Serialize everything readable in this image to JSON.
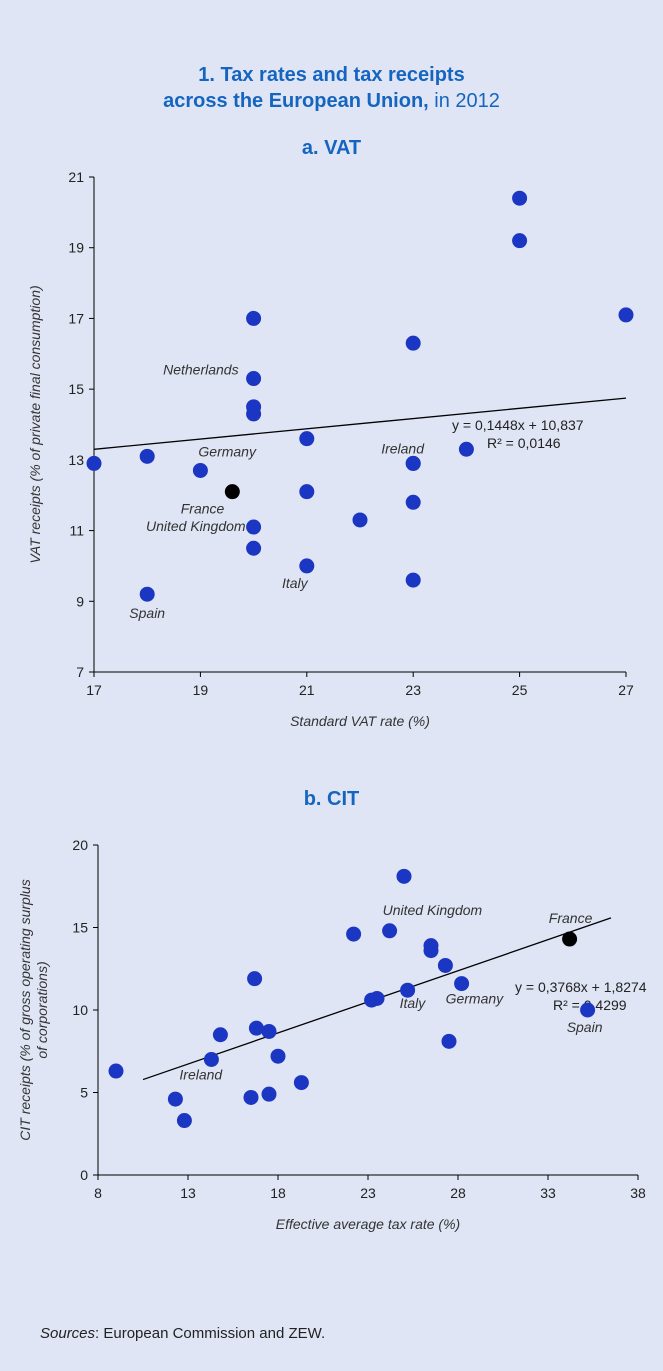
{
  "title": {
    "line1": "1. Tax rates and tax receipts",
    "line2_bold": "across the European Union,",
    "line2_rest": " in 2012"
  },
  "sources": {
    "label": "Sources",
    "text": ": European Commission and ZEW."
  },
  "colors": {
    "point": "#1b36c2",
    "highlight": "#000000",
    "title": "#1565c0",
    "background": "#dfe5f4"
  },
  "chart_data": [
    {
      "type": "scatter",
      "title": "a. VAT",
      "xlabel": "Standard VAT rate (%)",
      "ylabel": "VAT receipts (% of private final consumption)",
      "xlim": [
        17,
        27
      ],
      "ylim": [
        7,
        21
      ],
      "xticks": [
        17,
        19,
        21,
        23,
        25,
        27
      ],
      "yticks": [
        7,
        9,
        11,
        13,
        15,
        17,
        19,
        21
      ],
      "trendline": {
        "slope": 0.1448,
        "intercept": 10.837,
        "equation": "y = 0,1448x + 10,837",
        "r2": "R² = 0,0146"
      },
      "points": [
        {
          "x": 17,
          "y": 12.9
        },
        {
          "x": 18,
          "y": 13.1
        },
        {
          "x": 18,
          "y": 9.2,
          "label": "Spain"
        },
        {
          "x": 19,
          "y": 12.7,
          "label": "Germany"
        },
        {
          "x": 19.6,
          "y": 12.1,
          "label": "France",
          "highlight": true
        },
        {
          "x": 20,
          "y": 17.0
        },
        {
          "x": 20,
          "y": 15.3,
          "label": "Netherlands"
        },
        {
          "x": 20,
          "y": 14.5
        },
        {
          "x": 20,
          "y": 14.3
        },
        {
          "x": 20,
          "y": 11.1,
          "label": "United Kingdom"
        },
        {
          "x": 20,
          "y": 10.5
        },
        {
          "x": 21,
          "y": 13.6
        },
        {
          "x": 21,
          "y": 12.1
        },
        {
          "x": 21,
          "y": 10.0,
          "label": "Italy"
        },
        {
          "x": 22,
          "y": 11.3
        },
        {
          "x": 23,
          "y": 16.3
        },
        {
          "x": 23,
          "y": 12.9,
          "label": "Ireland"
        },
        {
          "x": 23,
          "y": 12.9
        },
        {
          "x": 23,
          "y": 11.8
        },
        {
          "x": 23,
          "y": 9.6
        },
        {
          "x": 24,
          "y": 13.3
        },
        {
          "x": 25,
          "y": 20.4
        },
        {
          "x": 25,
          "y": 19.2
        },
        {
          "x": 27,
          "y": 17.1
        }
      ]
    },
    {
      "type": "scatter",
      "title": "b. CIT",
      "xlabel": "Effective average tax rate (%)",
      "ylabel_line1": "CIT receipts (% of gross operating surplus",
      "ylabel_line2": "of corporations)",
      "xlim": [
        8,
        38
      ],
      "ylim": [
        0,
        20
      ],
      "xticks": [
        8,
        13,
        18,
        23,
        28,
        33,
        38
      ],
      "yticks": [
        0,
        5,
        10,
        15,
        20
      ],
      "trendline": {
        "slope": 0.3768,
        "intercept": 1.8274,
        "x_range": [
          10.5,
          36.5
        ],
        "equation": "y = 0,3768x + 1,8274",
        "r2": "R² = 0,4299"
      },
      "points": [
        {
          "x": 9.0,
          "y": 6.3
        },
        {
          "x": 12.3,
          "y": 4.6
        },
        {
          "x": 12.8,
          "y": 3.3
        },
        {
          "x": 14.3,
          "y": 7.0,
          "label": "Ireland"
        },
        {
          "x": 14.8,
          "y": 8.5
        },
        {
          "x": 16.5,
          "y": 4.7
        },
        {
          "x": 16.7,
          "y": 11.9
        },
        {
          "x": 16.8,
          "y": 8.9
        },
        {
          "x": 17.5,
          "y": 4.9
        },
        {
          "x": 17.5,
          "y": 8.7
        },
        {
          "x": 18.0,
          "y": 7.2
        },
        {
          "x": 19.3,
          "y": 5.6
        },
        {
          "x": 22.2,
          "y": 14.6
        },
        {
          "x": 23.2,
          "y": 10.6
        },
        {
          "x": 23.5,
          "y": 10.7
        },
        {
          "x": 24.2,
          "y": 14.8,
          "label": "United Kingdom"
        },
        {
          "x": 25.0,
          "y": 18.1
        },
        {
          "x": 25.2,
          "y": 11.2,
          "label": "Italy"
        },
        {
          "x": 26.5,
          "y": 13.9
        },
        {
          "x": 26.5,
          "y": 13.6
        },
        {
          "x": 27.3,
          "y": 12.7
        },
        {
          "x": 27.5,
          "y": 8.1
        },
        {
          "x": 28.2,
          "y": 11.6,
          "label": "Germany"
        },
        {
          "x": 34.2,
          "y": 14.3,
          "label": "France",
          "highlight": true
        },
        {
          "x": 35.2,
          "y": 10.0,
          "label": "Spain"
        }
      ]
    }
  ]
}
